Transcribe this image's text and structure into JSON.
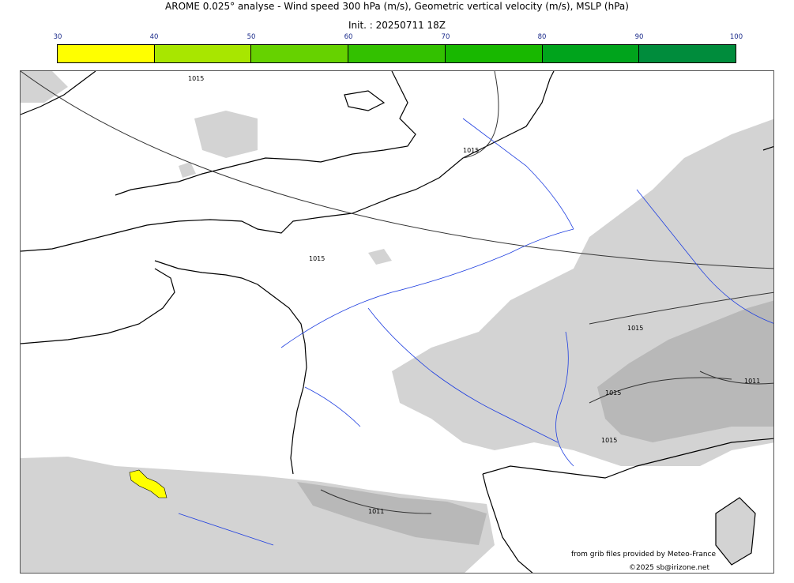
{
  "header": {
    "title": "AROME 0.025° analyse - Wind speed 300 hPa (m/s), Geometric vertical velocity (m/s), MSLP (hPa)",
    "init": "Init. : 20250711 18Z"
  },
  "colorbar": {
    "ticks": [
      "30",
      "40",
      "50",
      "60",
      "70",
      "80",
      "90",
      "100"
    ],
    "colors": [
      "#ffff00",
      "#a8e600",
      "#66d200",
      "#33c100",
      "#18b800",
      "#00a41c",
      "#008c3c",
      "#00784f"
    ]
  },
  "map": {
    "isobar_labels": [
      "1015",
      "1015",
      "1015",
      "1015",
      "1015",
      "1015",
      "1011",
      "1011"
    ],
    "colors": {
      "land": "#ffffff",
      "terrain_shade": "#d3d3d3",
      "terrain_shade_dark": "#b8b8b8",
      "coastline": "#000000",
      "rivers": "#1f3fe0",
      "wind_highlight": "#ffff00"
    }
  },
  "footer": {
    "source": "from grib files provided by Meteo-France",
    "copyright": "©2025 sb@irizone.net"
  }
}
